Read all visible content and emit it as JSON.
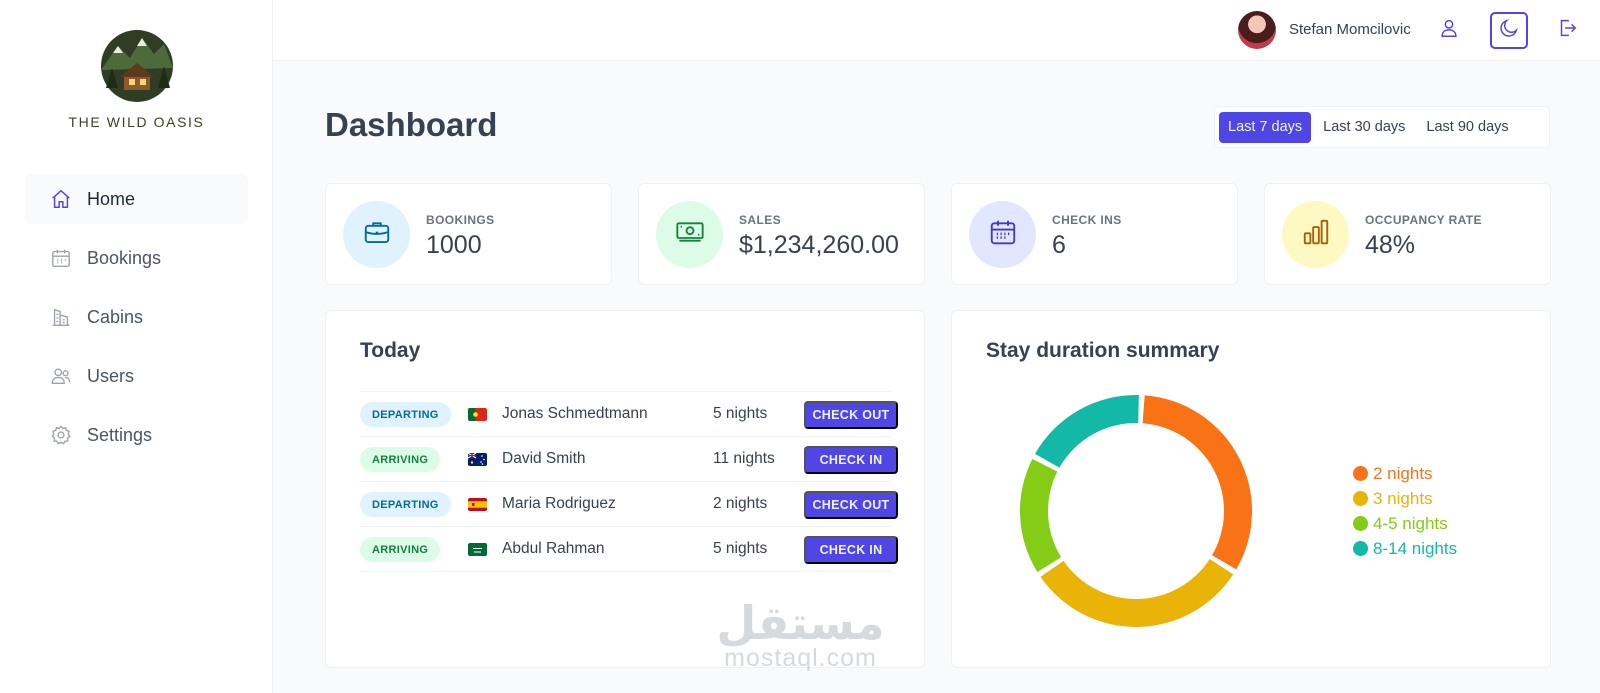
{
  "brand": {
    "name": "THE WILD OASIS"
  },
  "sidebar": {
    "items": [
      {
        "label": "Home",
        "icon": "home-icon",
        "active": true
      },
      {
        "label": "Bookings",
        "icon": "calendar-icon",
        "active": false
      },
      {
        "label": "Cabins",
        "icon": "cabin-icon",
        "active": false
      },
      {
        "label": "Users",
        "icon": "users-icon",
        "active": false
      },
      {
        "label": "Settings",
        "icon": "gear-icon",
        "active": false
      }
    ]
  },
  "header": {
    "user_name": "Stefan Momcilovic",
    "icons": [
      "user-icon",
      "moon-icon",
      "logout-icon"
    ]
  },
  "main": {
    "title": "Dashboard",
    "filters": [
      {
        "label": "Last 7 days",
        "active": true
      },
      {
        "label": "Last 30 days",
        "active": false
      },
      {
        "label": "Last 90 days",
        "active": false
      }
    ],
    "stats": [
      {
        "label": "BOOKINGS",
        "value": "1000",
        "icon": "briefcase-icon",
        "color": "#e0f2fe",
        "icon_color": "#0369a1"
      },
      {
        "label": "SALES",
        "value": "$1,234,260.00",
        "icon": "banknotes-icon",
        "color": "#dcfce7",
        "icon_color": "#15803d"
      },
      {
        "label": "CHECK INS",
        "value": "6",
        "icon": "calendar-days-icon",
        "color": "#e0e7ff",
        "icon_color": "#4338ca"
      },
      {
        "label": "OCCUPANCY RATE",
        "value": "48%",
        "icon": "chart-bar-icon",
        "color": "#fef9c3",
        "icon_color": "#a16207"
      }
    ]
  },
  "today": {
    "title": "Today",
    "rows": [
      {
        "status": "DEPARTING",
        "type": "departing",
        "flag": "portugal-flag",
        "guest": "Jonas Schmedtmann",
        "nights": "5 nights",
        "action": "CHECK OUT"
      },
      {
        "status": "ARRIVING",
        "type": "arriving",
        "flag": "australia-flag",
        "guest": "David Smith",
        "nights": "11 nights",
        "action": "CHECK IN"
      },
      {
        "status": "DEPARTING",
        "type": "departing",
        "flag": "spain-flag",
        "guest": "Maria Rodriguez",
        "nights": "2 nights",
        "action": "CHECK OUT"
      },
      {
        "status": "ARRIVING",
        "type": "arriving",
        "flag": "saudi-arabia-flag",
        "guest": "Abdul Rahman",
        "nights": "5 nights",
        "action": "CHECK IN"
      }
    ]
  },
  "chart_data": {
    "type": "pie",
    "title": "Stay duration summary",
    "categories": [
      "2 nights",
      "3 nights",
      "4-5 nights",
      "8-14 nights"
    ],
    "values": [
      33,
      32,
      17,
      18
    ],
    "colors": [
      "#f97316",
      "#eab308",
      "#84cc16",
      "#14b8a6"
    ],
    "legend": "right"
  },
  "watermark": {
    "arabic": "مستقل",
    "latin": "mostaql.com"
  },
  "colors": {
    "accent": "#4f46e5",
    "background": "#f9fafb"
  }
}
